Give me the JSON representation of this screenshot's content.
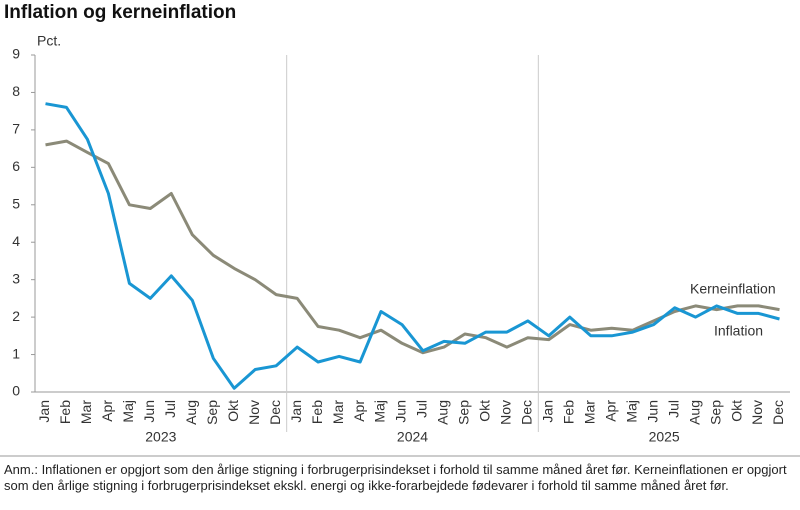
{
  "chart_data": {
    "type": "line",
    "title": "Inflation og kerneinflation",
    "y_label": "Pct.",
    "categories": [
      "Jan",
      "Feb",
      "Mar",
      "Apr",
      "Maj",
      "Jun",
      "Jul",
      "Aug",
      "Sep",
      "Okt",
      "Nov",
      "Dec",
      "Jan",
      "Feb",
      "Mar",
      "Apr",
      "Maj",
      "Jun",
      "Jul",
      "Aug",
      "Sep",
      "Okt",
      "Nov",
      "Dec",
      "Jan",
      "Feb",
      "Mar",
      "Apr",
      "Maj",
      "Jun",
      "Jul",
      "Aug",
      "Sep",
      "Okt",
      "Nov",
      "Dec"
    ],
    "years": [
      "2023",
      "2024",
      "2025"
    ],
    "ylim": [
      0,
      9
    ],
    "yticks": [
      0,
      1,
      2,
      3,
      4,
      5,
      6,
      7,
      8,
      9
    ],
    "series": [
      {
        "name": "Kerneinflation",
        "color": "#8b8a78",
        "values": [
          6.6,
          6.7,
          6.4,
          6.1,
          5.0,
          4.9,
          5.3,
          4.2,
          3.65,
          3.3,
          3.0,
          2.6,
          2.5,
          1.75,
          1.65,
          1.45,
          1.65,
          1.3,
          1.05,
          1.2,
          1.55,
          1.45,
          1.2,
          1.45,
          1.4,
          1.8,
          1.65,
          1.7,
          1.65,
          1.9,
          2.15,
          2.3,
          2.2,
          2.3,
          2.3,
          2.2
        ]
      },
      {
        "name": "Inflation",
        "color": "#1996d3",
        "values": [
          7.7,
          7.6,
          6.75,
          5.3,
          2.9,
          2.5,
          3.1,
          2.45,
          0.9,
          0.1,
          0.6,
          0.7,
          1.2,
          0.8,
          0.95,
          0.8,
          2.15,
          1.8,
          1.1,
          1.35,
          1.3,
          1.6,
          1.6,
          1.9,
          1.5,
          2.0,
          1.5,
          1.5,
          1.6,
          1.8,
          2.25,
          2.0,
          2.3,
          2.1,
          2.1,
          1.95
        ]
      }
    ],
    "note": "Anm.: Inflationen er opgjort som den årlige stigning i forbrugerprisindekset i forhold til samme måned året før. Kerneinflationen er opgjort som den årlige stigning i forbrugerprisindekset ekskl. energi og ikke-forarbejdede fødevarer i forhold til samme måned året før."
  }
}
